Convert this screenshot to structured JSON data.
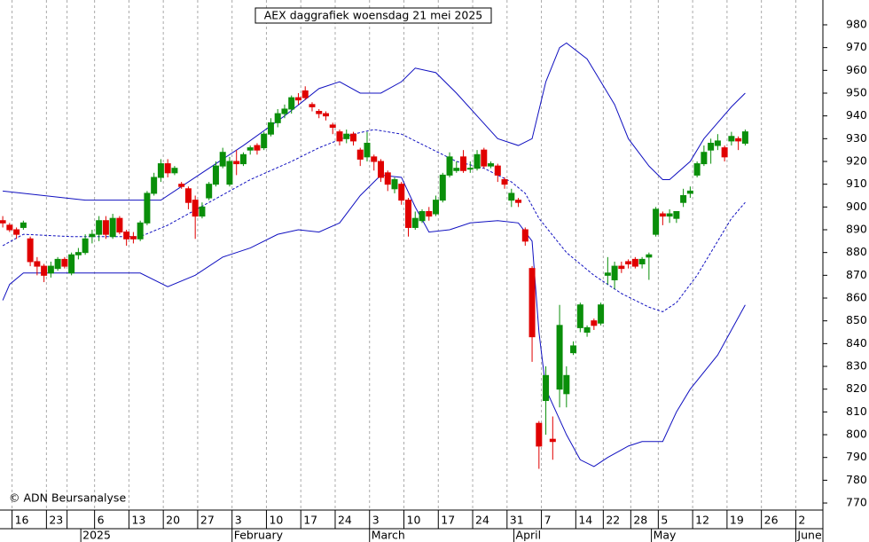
{
  "chart_data": {
    "type": "candlestick",
    "title": "AEX daggrafiek woensdag 21 mei 2025",
    "copyright": "© ADN Beursanalyse",
    "up_color": "#0a8f0a",
    "down_color": "#e00000",
    "band_color": "#1010c0",
    "grid": true,
    "xlim": [
      -0.4,
      119.3
    ],
    "ylim": [
      766.9,
      990.9
    ],
    "yticks": [
      770,
      780,
      790,
      800,
      810,
      820,
      830,
      840,
      850,
      860,
      870,
      880,
      890,
      900,
      910,
      920,
      930,
      940,
      950,
      960,
      970,
      980
    ],
    "xticks": [
      {
        "value": 2,
        "label": "16"
      },
      {
        "value": 7,
        "label": "23"
      },
      {
        "value": 10,
        "label": ""
      },
      {
        "value": 14,
        "label": "6"
      },
      {
        "value": 19,
        "label": "13"
      },
      {
        "value": 24,
        "label": "20"
      },
      {
        "value": 29,
        "label": "27"
      },
      {
        "value": 34,
        "label": "3"
      },
      {
        "value": 39,
        "label": "10"
      },
      {
        "value": 44,
        "label": "17"
      },
      {
        "value": 49,
        "label": "24"
      },
      {
        "value": 54,
        "label": "3"
      },
      {
        "value": 59,
        "label": "10"
      },
      {
        "value": 64,
        "label": "17"
      },
      {
        "value": 69,
        "label": "24"
      },
      {
        "value": 74,
        "label": "31"
      },
      {
        "value": 79,
        "label": "7"
      },
      {
        "value": 84,
        "label": "14"
      },
      {
        "value": 88,
        "label": "22"
      },
      {
        "value": 92,
        "label": "28"
      },
      {
        "value": 96,
        "label": "5"
      },
      {
        "value": 101,
        "label": "12"
      },
      {
        "value": 106,
        "label": "19"
      },
      {
        "value": 111,
        "label": "26"
      },
      {
        "value": 116,
        "label": "2"
      }
    ],
    "month_labels": [
      {
        "value": 12,
        "label": "2025"
      },
      {
        "value": 34,
        "label": "February"
      },
      {
        "value": 54,
        "label": "March"
      },
      {
        "value": 75,
        "label": "April"
      },
      {
        "value": 95,
        "label": "May"
      },
      {
        "value": 116,
        "label": "June"
      }
    ],
    "x": [
      0,
      1,
      2,
      3,
      4,
      5,
      6,
      7,
      8,
      9,
      10,
      11,
      12,
      13,
      14,
      15,
      16,
      17,
      18,
      19,
      20,
      21,
      22,
      23,
      24,
      25,
      26,
      27,
      28,
      29,
      30,
      31,
      32,
      33,
      34,
      35,
      36,
      37,
      38,
      39,
      40,
      41,
      42,
      43,
      44,
      45,
      46,
      47,
      48,
      49,
      50,
      51,
      52,
      53,
      54,
      55,
      56,
      57,
      58,
      59,
      60,
      61,
      62,
      63,
      64,
      65,
      66,
      67,
      68,
      69,
      70,
      71,
      72,
      73,
      74,
      75,
      76,
      77,
      78,
      79,
      80,
      81,
      82,
      83,
      84,
      85,
      86,
      87,
      88,
      89,
      90,
      91,
      92,
      93,
      94,
      95,
      96,
      97,
      98,
      99,
      100,
      101,
      102,
      103,
      104,
      105,
      106,
      107,
      108
    ],
    "open": [
      894,
      892,
      890,
      891,
      886,
      876,
      874,
      871,
      873,
      877,
      871,
      879,
      880,
      887,
      888,
      894,
      887,
      895,
      889,
      887,
      886,
      893,
      906,
      913,
      919,
      915,
      910,
      908,
      903,
      896,
      904,
      910,
      918,
      910,
      920,
      919,
      925,
      927,
      926,
      932,
      937,
      941,
      943,
      948,
      951,
      945,
      942,
      941,
      936,
      933,
      930,
      932,
      925,
      922,
      922,
      920,
      915,
      908,
      910,
      903,
      891,
      894,
      898,
      897,
      903,
      914,
      916,
      922,
      917,
      917,
      925,
      918,
      918,
      912,
      903,
      903,
      890,
      873,
      805,
      815,
      798,
      820,
      818,
      836,
      847,
      845,
      850,
      849,
      870,
      868,
      874,
      876,
      877,
      875,
      878,
      888,
      897,
      896,
      895,
      902,
      906,
      914,
      919,
      925,
      927,
      926,
      929,
      930,
      928
    ],
    "high": [
      896,
      893,
      891,
      894,
      887,
      878,
      875,
      876,
      878,
      878,
      880,
      882,
      888,
      890,
      896,
      896,
      897,
      896,
      890,
      889,
      894,
      907,
      915,
      921,
      921,
      918,
      911,
      909,
      905,
      902,
      911,
      920,
      926,
      922,
      925,
      924,
      927,
      928,
      933,
      939,
      943,
      945,
      949,
      950,
      953,
      946,
      943,
      942,
      937,
      934,
      934,
      933,
      926,
      933,
      923,
      921,
      916,
      913,
      911,
      904,
      898,
      899,
      900,
      905,
      915,
      924,
      920,
      925,
      920,
      925,
      926,
      920,
      919,
      913,
      908,
      904,
      891,
      874,
      806,
      830,
      808,
      857,
      830,
      841,
      858,
      848,
      851,
      858,
      878,
      876,
      876,
      877,
      878,
      878,
      880,
      900,
      898,
      899,
      898,
      908,
      909,
      920,
      927,
      930,
      932,
      927,
      933,
      931,
      934
    ],
    "low": [
      891,
      889,
      886,
      890,
      874,
      870,
      867,
      869,
      872,
      873,
      870,
      877,
      879,
      884,
      885,
      886,
      886,
      888,
      883,
      884,
      885,
      892,
      905,
      911,
      913,
      914,
      908,
      899,
      886,
      895,
      903,
      909,
      917,
      909,
      914,
      918,
      923,
      923,
      925,
      931,
      935,
      939,
      941,
      945,
      947,
      942,
      939,
      938,
      932,
      927,
      928,
      927,
      918,
      920,
      916,
      911,
      907,
      906,
      901,
      887,
      890,
      893,
      894,
      896,
      902,
      913,
      915,
      915,
      915,
      916,
      917,
      917,
      911,
      908,
      900,
      900,
      883,
      832,
      785,
      800,
      789,
      812,
      812,
      835,
      845,
      843,
      846,
      848,
      866,
      864,
      871,
      873,
      873,
      873,
      868,
      887,
      892,
      893,
      893,
      900,
      904,
      913,
      918,
      919,
      925,
      920,
      927,
      925,
      927
    ],
    "close": [
      893,
      890,
      888,
      893,
      876,
      874,
      870,
      874,
      877,
      874,
      879,
      880,
      886,
      888,
      894,
      888,
      895,
      889,
      886,
      886,
      893,
      906,
      913,
      919,
      915,
      917,
      909,
      902,
      896,
      900,
      910,
      918,
      924,
      920,
      919,
      923,
      926,
      925,
      932,
      937,
      941,
      943,
      948,
      947,
      948,
      944,
      941,
      940,
      935,
      929,
      932,
      929,
      921,
      928,
      920,
      913,
      910,
      912,
      903,
      891,
      895,
      898,
      896,
      903,
      914,
      922,
      917,
      916,
      917,
      923,
      918,
      919,
      914,
      910,
      906,
      902,
      885,
      843,
      795,
      826,
      797,
      848,
      826,
      839,
      857,
      847,
      848,
      857,
      871,
      874,
      873,
      875,
      874,
      877,
      879,
      899,
      896,
      897,
      898,
      905,
      907,
      919,
      924,
      928,
      929,
      922,
      931,
      929,
      933
    ],
    "bands": [
      {
        "name": "upper",
        "x": [
          0,
          12,
          23,
          29,
          35,
          41,
          46,
          49,
          52,
          55,
          58,
          60,
          63,
          66,
          69,
          72,
          75,
          77,
          79,
          81,
          82,
          85,
          87,
          89,
          91,
          94,
          96,
          97,
          100,
          102,
          104,
          106,
          108
        ],
        "values": [
          907,
          903,
          903,
          915,
          927,
          940,
          952,
          955,
          950,
          950,
          955,
          961,
          959,
          950,
          940,
          930,
          927,
          930,
          955,
          970,
          972,
          965,
          955,
          945,
          930,
          918,
          912,
          912,
          920,
          930,
          937,
          944,
          950
        ]
      },
      {
        "name": "middle",
        "x": [
          0,
          3,
          10,
          20,
          24,
          30,
          36,
          42,
          46,
          51,
          54,
          58,
          62,
          66,
          70,
          72,
          74,
          76,
          78,
          82,
          86,
          90,
          94,
          96,
          98,
          101,
          104,
          106,
          108
        ],
        "values": [
          883,
          888,
          887,
          887,
          892,
          902,
          912,
          920,
          926,
          932,
          934,
          932,
          926,
          920,
          917,
          914,
          911,
          906,
          895,
          880,
          870,
          862,
          856,
          854,
          858,
          870,
          885,
          895,
          902
        ]
      },
      {
        "name": "lower",
        "x": [
          0,
          1,
          3,
          10,
          20,
          24,
          28,
          32,
          36,
          40,
          43,
          46,
          49,
          52,
          55,
          58,
          60,
          62,
          65,
          68,
          72,
          75,
          77,
          78,
          79,
          82,
          84,
          86,
          88,
          91,
          93,
          96,
          98,
          100,
          104,
          108
        ],
        "values": [
          859,
          866,
          871,
          871,
          871,
          865,
          870,
          878,
          882,
          888,
          890,
          889,
          893,
          905,
          914,
          913,
          900,
          889,
          890,
          893,
          894,
          893,
          885,
          845,
          820,
          800,
          789,
          786,
          790,
          795,
          797,
          797,
          810,
          820,
          835,
          857
        ]
      }
    ]
  }
}
